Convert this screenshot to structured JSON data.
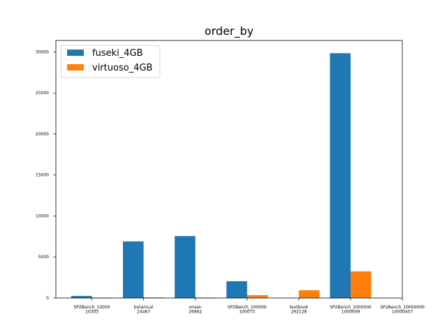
{
  "chart_data": {
    "type": "bar",
    "title": "order_by",
    "xlabel": "",
    "ylabel": "",
    "categories": [
      [
        "SP2Bench_10000",
        "10303"
      ],
      [
        "botanical",
        "24467"
      ],
      [
        "onsen",
        "26962"
      ],
      [
        "SP2Bench_100000",
        "100073"
      ],
      [
        "textbook",
        "292128"
      ],
      [
        "SP2Bench_1000000",
        "1000009"
      ],
      [
        "SP2Bench_10000000",
        "10000457"
      ]
    ],
    "series": [
      {
        "name": "fuseki_4GB",
        "color": "#1f77b4",
        "values": [
          250,
          6900,
          7550,
          2050,
          0,
          29850,
          null
        ]
      },
      {
        "name": "virtuoso_4GB",
        "color": "#ff7f0e",
        "values": [
          60,
          70,
          60,
          350,
          950,
          3250,
          null
        ]
      }
    ],
    "ylim": [
      0,
      31400
    ],
    "yticks": [
      0,
      5000,
      10000,
      15000,
      20000,
      25000,
      30000
    ],
    "grid": false,
    "legend_position": "top-left"
  }
}
